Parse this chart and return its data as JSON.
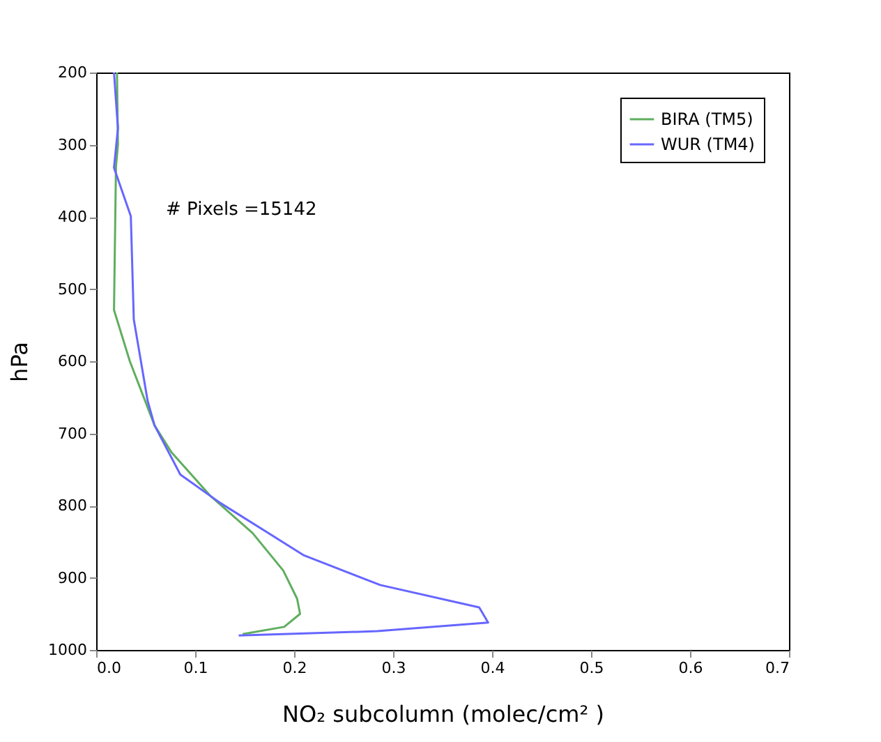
{
  "chart_data": {
    "type": "line",
    "xlabel": "NO₂ subcolumn (molec/cm² )",
    "ylabel": "hPa",
    "annotations": [
      "# Pixels =15142"
    ],
    "xlim": [
      0,
      0.7
    ],
    "xticks": [
      {
        "value": 0,
        "label": "0.0"
      },
      0.1,
      0.2,
      0.3,
      0.4,
      0.5,
      0.6,
      0.7
    ],
    "ylim": [
      1000,
      200
    ],
    "yticks": [
      200,
      300,
      400,
      500,
      600,
      700,
      800,
      900,
      1000
    ],
    "grid": false,
    "legend": "top right",
    "marker": "none",
    "line_style": "solid",
    "series": [
      {
        "name": "BIRA (TM5)",
        "color": "#5fae5f",
        "x": [
          0.021,
          0.022,
          0.02,
          0.018,
          0.034,
          0.059,
          0.076,
          0.115,
          0.158,
          0.189,
          0.203,
          0.206,
          0.19,
          0.148
        ],
        "values": [
          200,
          300,
          330,
          529,
          600,
          689,
          726,
          786,
          838,
          890,
          929,
          950,
          968,
          978
        ]
      },
      {
        "name": "WUR (TM4)",
        "color": "#6666ff",
        "x": [
          0.018,
          0.021,
          0.022,
          0.018,
          0.035,
          0.038,
          0.052,
          0.059,
          0.085,
          0.125,
          0.21,
          0.287,
          0.387,
          0.396,
          0.284,
          0.144
        ],
        "values": [
          200,
          258,
          277,
          332,
          399,
          542,
          655,
          689,
          757,
          796,
          869,
          910,
          941,
          962,
          974,
          980
        ]
      }
    ]
  }
}
